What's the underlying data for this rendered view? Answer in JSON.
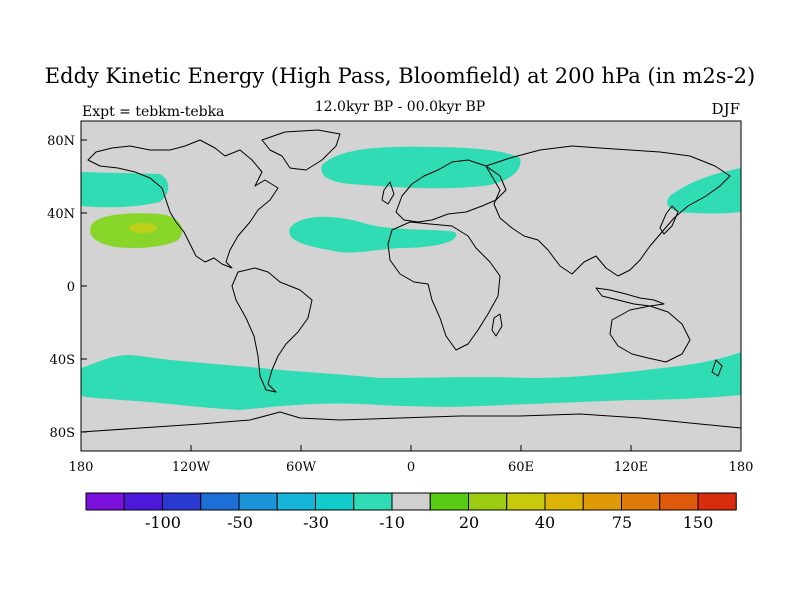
{
  "map": {
    "title": "Eddy Kinetic Energy (High Pass, Bloomfield) at 200 hPa (in m2s-2)",
    "subtitle": "12.0kyr BP - 00.0kyr BP",
    "left_label": "Expt = tebkm-tebka",
    "right_label": "DJF",
    "x_ticks": [
      "180",
      "120W",
      "60W",
      "0",
      "60E",
      "120E",
      "180"
    ],
    "y_ticks": [
      "80N",
      "40N",
      "0",
      "40S",
      "80S"
    ],
    "colorbar": {
      "colors": [
        "#7a10dc",
        "#4b18dc",
        "#2a3ad0",
        "#1e6ed8",
        "#1a96d8",
        "#16b4d8",
        "#12cccc",
        "#30dcb4",
        "#d0d0d0",
        "#58cc14",
        "#9ccc10",
        "#c8c80c",
        "#dcb408",
        "#e09a08",
        "#e07a0a",
        "#e05a0c",
        "#d82c0e"
      ],
      "labels": [
        "-100",
        "-50",
        "-30",
        "-10",
        "20",
        "40",
        "75",
        "150"
      ]
    },
    "colors": {
      "land_sea_background": "#d3d3d3",
      "negative_band": "#30dcb4",
      "positive_light": "#88d62a",
      "positive_strong": "#c0cf18",
      "coastline": "#000000"
    }
  }
}
